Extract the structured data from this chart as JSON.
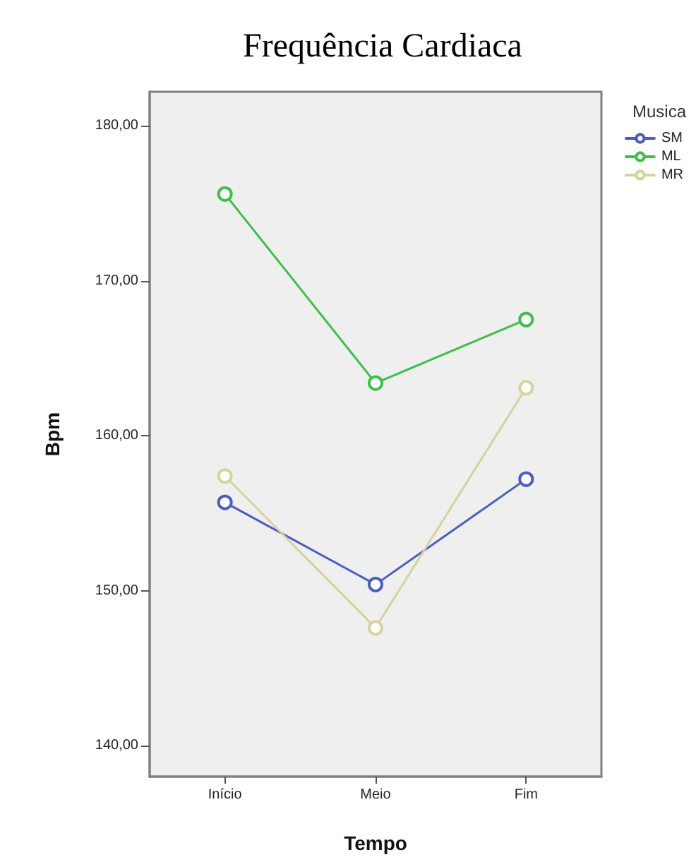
{
  "chart_data": {
    "type": "line",
    "title": "Frequência Cardiaca",
    "xlabel": "Tempo",
    "ylabel": "Bpm",
    "legend_title": "Musica",
    "categories": [
      "Início",
      "Meio",
      "Fim"
    ],
    "series": [
      {
        "name": "SM",
        "color": "#4a5cc4",
        "values": [
          155.7,
          150.4,
          157.2
        ]
      },
      {
        "name": "ML",
        "color": "#3cbf4a",
        "values": [
          175.6,
          163.4,
          167.5
        ]
      },
      {
        "name": "MR",
        "color": "#d6d29c",
        "values": [
          157.4,
          147.6,
          163.1
        ]
      }
    ],
    "ylim": [
      138,
      182.2
    ],
    "yticks": [
      {
        "value": 140,
        "label": "140,00"
      },
      {
        "value": 150,
        "label": "150,00"
      },
      {
        "value": 160,
        "label": "160,00"
      },
      {
        "value": 170,
        "label": "170,00"
      },
      {
        "value": 180,
        "label": "180,00"
      }
    ],
    "grid": false,
    "legend": "top right",
    "marker": "circle",
    "line_style": "solid"
  }
}
